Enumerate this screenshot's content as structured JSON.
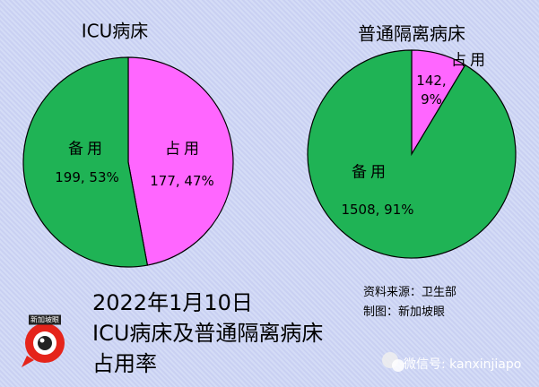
{
  "chart_data": [
    {
      "type": "pie",
      "title": "ICU病床",
      "categories": [
        "占用",
        "备用"
      ],
      "values": [
        177,
        199
      ],
      "value_labels": [
        "177, 47%",
        "199, 53%"
      ],
      "colors": [
        "#ff66ff",
        "#1fb355"
      ]
    },
    {
      "type": "pie",
      "title": "普通隔离病床",
      "categories": [
        "占用",
        "备用"
      ],
      "values": [
        142,
        1508
      ],
      "value_labels": [
        "142, 9%",
        "1508, 91%"
      ],
      "colors": [
        "#ff66ff",
        "#1fb355"
      ]
    }
  ],
  "caption": [
    "2022年1月10日",
    "ICU病床及普通隔离病床",
    "占用率"
  ],
  "source": [
    "资料来源：卫生部",
    "制图：新加坡眼"
  ],
  "logo": "新加坡眼",
  "watermark": "微信号: kanxinjiapo"
}
